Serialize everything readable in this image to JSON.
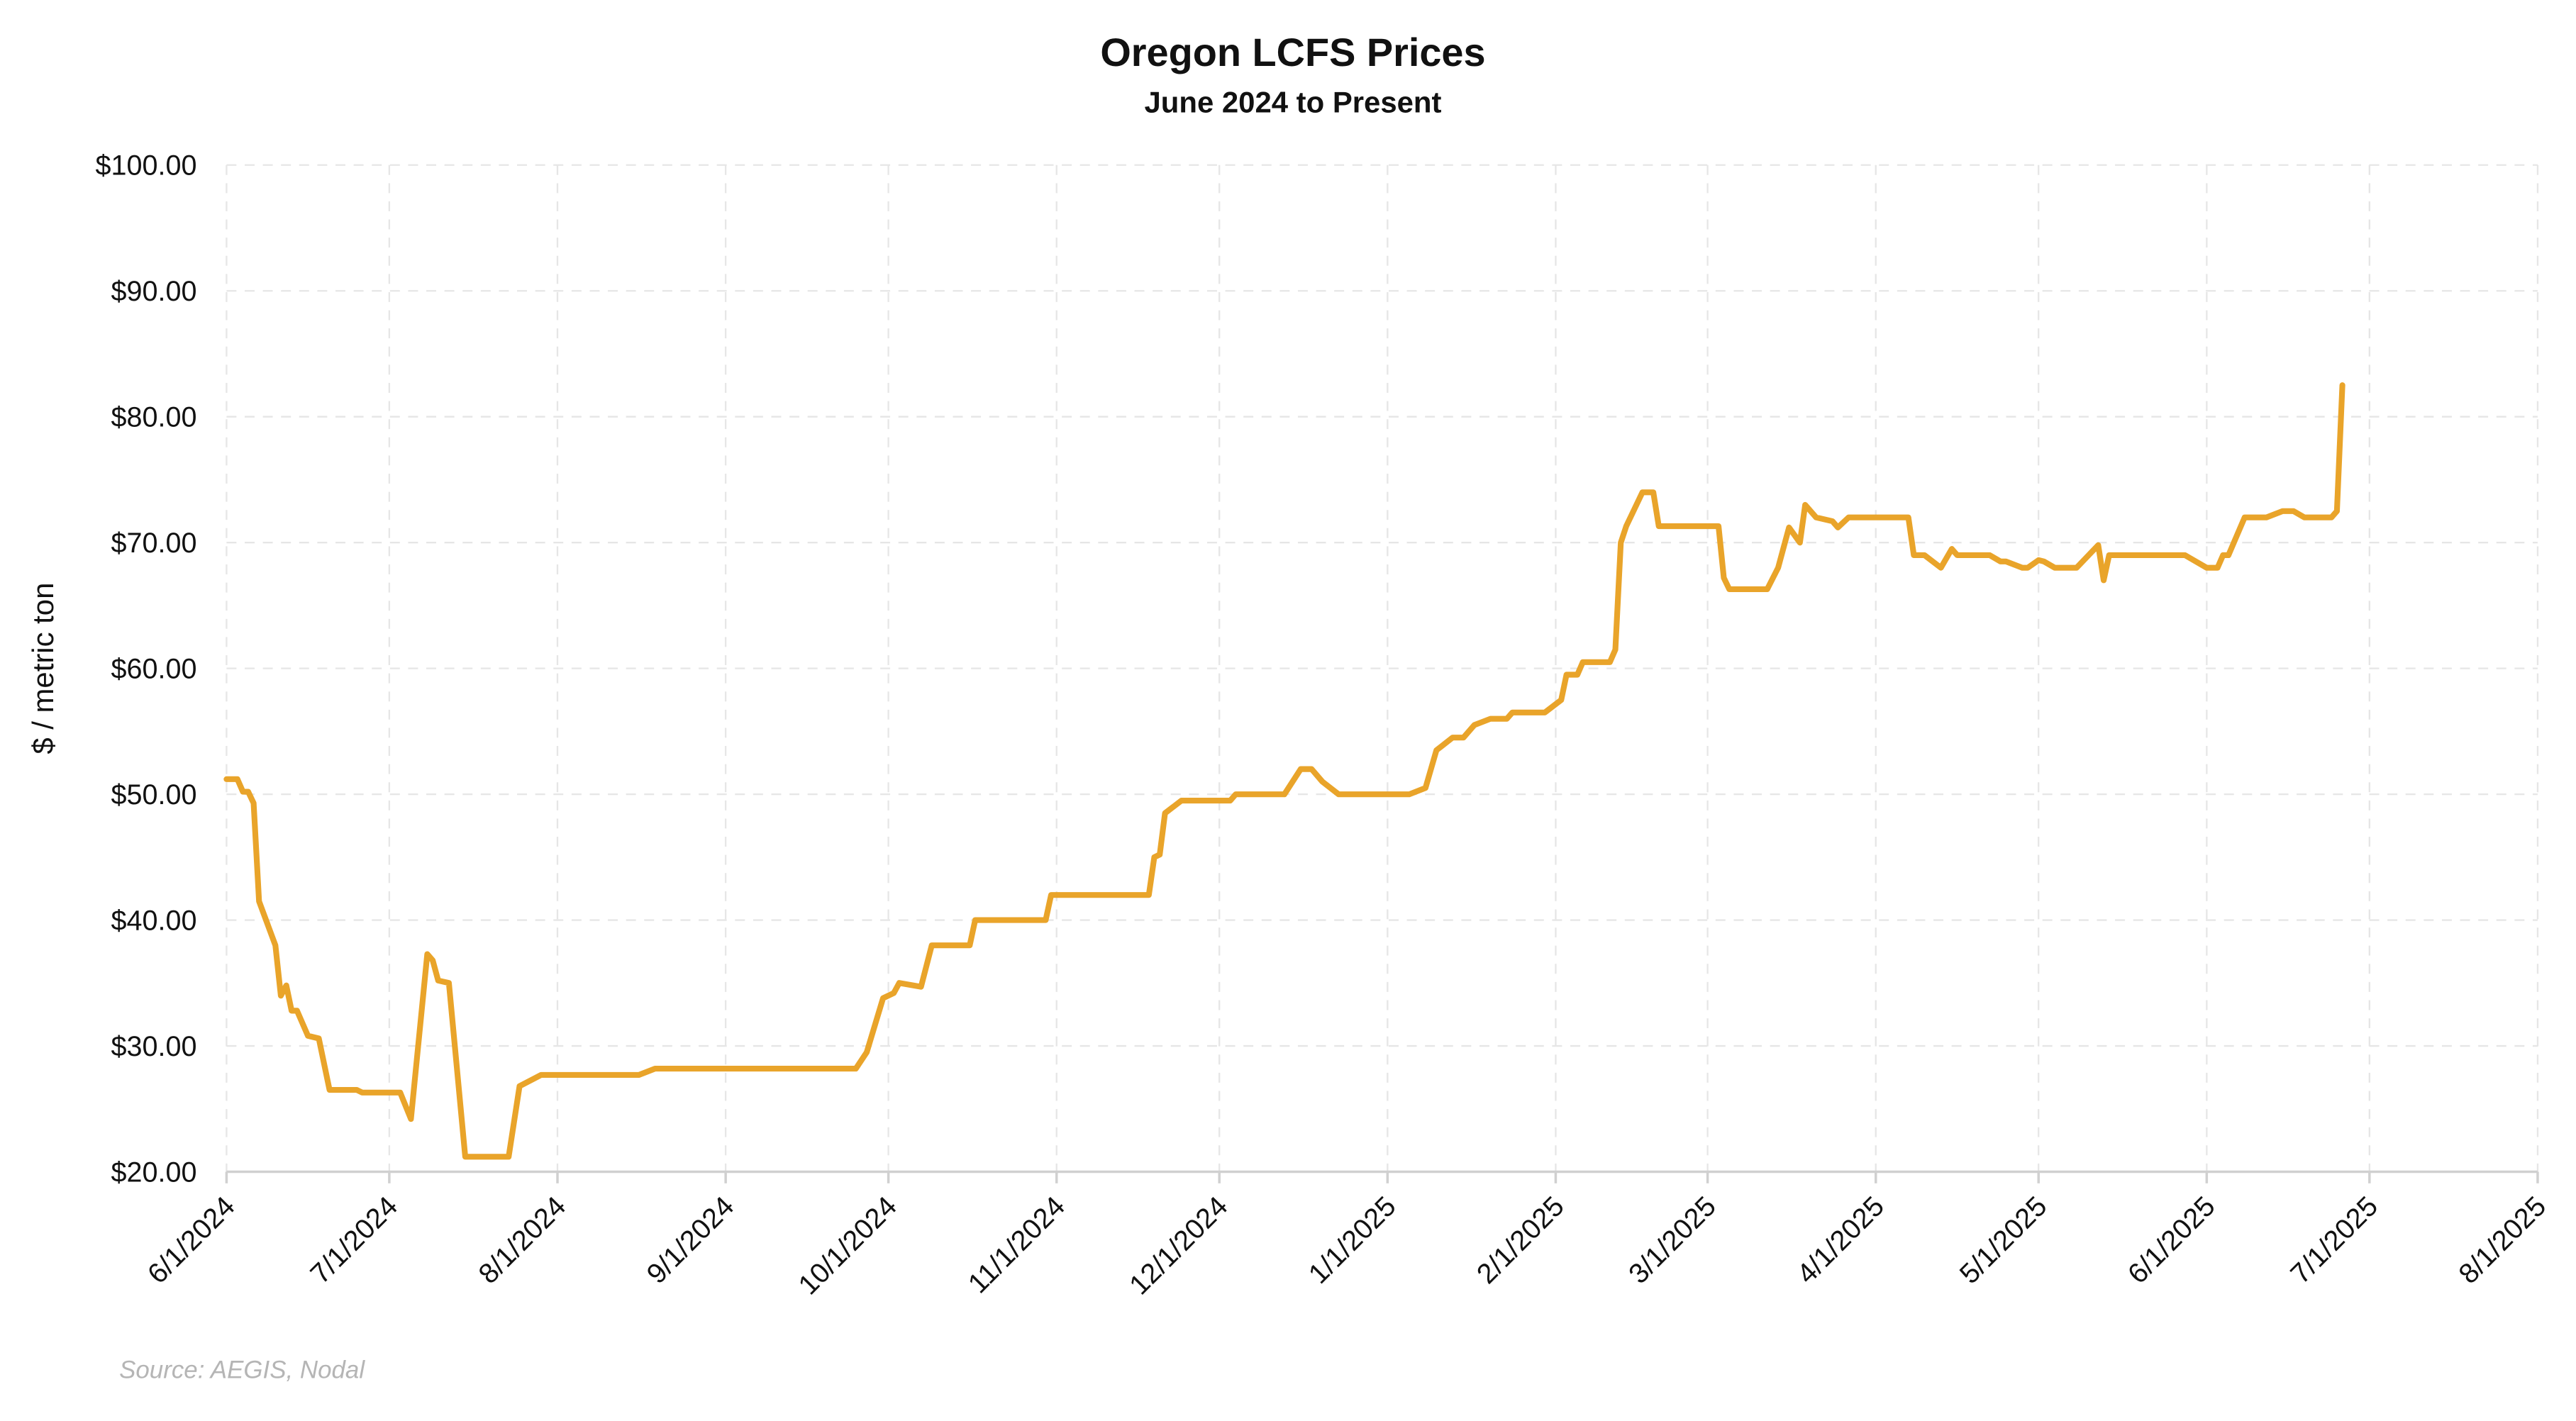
{
  "chart_data": {
    "type": "line",
    "title": "Oregon LCFS Prices",
    "subtitle": "June 2024 to Present",
    "xlabel": "",
    "ylabel": "$ / metric ton",
    "source": "Source: AEGIS, Nodal",
    "x_unit": "days since 6/1/2024",
    "xlim": [
      0,
      426
    ],
    "ylim": [
      20,
      100
    ],
    "grid": true,
    "legend": "none",
    "x_ticks": [
      {
        "day": 0,
        "label": "6/1/2024"
      },
      {
        "day": 30,
        "label": "7/1/2024"
      },
      {
        "day": 61,
        "label": "8/1/2024"
      },
      {
        "day": 92,
        "label": "9/1/2024"
      },
      {
        "day": 122,
        "label": "10/1/2024"
      },
      {
        "day": 153,
        "label": "11/1/2024"
      },
      {
        "day": 183,
        "label": "12/1/2024"
      },
      {
        "day": 214,
        "label": "1/1/2025"
      },
      {
        "day": 245,
        "label": "2/1/2025"
      },
      {
        "day": 273,
        "label": "3/1/2025"
      },
      {
        "day": 304,
        "label": "4/1/2025"
      },
      {
        "day": 334,
        "label": "5/1/2025"
      },
      {
        "day": 365,
        "label": "6/1/2025"
      },
      {
        "day": 395,
        "label": "7/1/2025"
      },
      {
        "day": 426,
        "label": "8/1/2025"
      }
    ],
    "y_ticks": [
      {
        "value": 100,
        "label": "$100.00"
      },
      {
        "value": 90,
        "label": "$90.00"
      },
      {
        "value": 80,
        "label": "$80.00"
      },
      {
        "value": 70,
        "label": "$70.00"
      },
      {
        "value": 60,
        "label": "$60.00"
      },
      {
        "value": 50,
        "label": "$50.00"
      },
      {
        "value": 40,
        "label": "$40.00"
      },
      {
        "value": 30,
        "label": "$30.00"
      },
      {
        "value": 20,
        "label": "$20.00"
      }
    ],
    "series": [
      {
        "name": "Oregon LCFS Price",
        "color": "#E9A42A",
        "x": [
          0,
          2,
          3,
          4,
          5,
          6,
          9,
          10,
          11,
          12,
          13,
          15,
          17,
          19,
          24,
          25,
          32,
          34,
          37,
          38,
          39,
          41,
          44,
          52,
          54,
          58,
          76,
          79,
          116,
          118,
          121,
          123,
          124,
          128,
          130,
          137,
          138,
          151,
          152,
          170,
          171,
          172,
          173,
          176,
          185,
          186,
          195,
          198,
          200,
          202,
          205,
          218,
          221,
          223,
          226,
          228,
          230,
          233,
          236,
          237,
          243,
          246,
          247,
          249,
          250,
          255,
          256,
          257,
          258,
          261,
          263,
          264,
          275,
          276,
          277,
          284,
          286,
          288,
          290,
          291,
          293,
          296,
          297,
          299,
          310,
          311,
          313,
          316,
          318,
          319,
          325,
          327,
          328,
          331,
          332,
          334,
          335,
          337,
          341,
          345,
          346,
          347,
          361,
          365,
          367,
          368,
          369,
          372,
          376,
          379,
          381,
          383,
          388,
          389,
          390
        ],
        "values": [
          51.2,
          51.2,
          50.2,
          50.2,
          49.3,
          41.5,
          38,
          34,
          34.8,
          32.8,
          32.8,
          30.8,
          30.6,
          26.5,
          26.5,
          26.3,
          26.3,
          24.2,
          37.3,
          36.8,
          35.2,
          35,
          21.2,
          21.2,
          26.8,
          27.7,
          27.7,
          28.2,
          28.2,
          29.5,
          33.8,
          34.2,
          35,
          34.7,
          38,
          38,
          40,
          40,
          42,
          42,
          45,
          45.2,
          48.5,
          49.5,
          49.5,
          50,
          50,
          52,
          52,
          51,
          50,
          50,
          50.5,
          53.5,
          54.5,
          54.5,
          55.5,
          56,
          56,
          56.5,
          56.5,
          57.5,
          59.5,
          59.5,
          60.5,
          60.5,
          61.5,
          70,
          71.3,
          74,
          74,
          71.3,
          71.3,
          67.2,
          66.3,
          66.3,
          68,
          71.2,
          70,
          73,
          72,
          71.7,
          71.2,
          72,
          72,
          69,
          69,
          68,
          69.5,
          69,
          69,
          68.5,
          68.5,
          68,
          68,
          68.6,
          68.5,
          68,
          68,
          69.8,
          67,
          69,
          69,
          68,
          68,
          69,
          69,
          72,
          72,
          72.5,
          72.5,
          72,
          72,
          72.5,
          82.5
        ]
      }
    ]
  }
}
